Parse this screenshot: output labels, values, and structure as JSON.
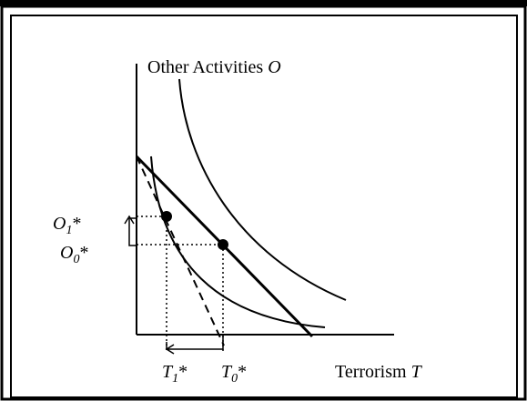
{
  "axes": {
    "y_label": {
      "text": "Other Activities",
      "symbol": "O"
    },
    "x_label": {
      "text": "Terrorism",
      "symbol": "T"
    }
  },
  "labels": {
    "O1": {
      "base": "O",
      "sub": "1",
      "mark": "*"
    },
    "O0": {
      "base": "O",
      "sub": "0",
      "mark": "*"
    },
    "T1": {
      "base": "T",
      "sub": "1",
      "mark": "*"
    },
    "T0": {
      "base": "T",
      "sub": "0",
      "mark": "*"
    }
  }
}
